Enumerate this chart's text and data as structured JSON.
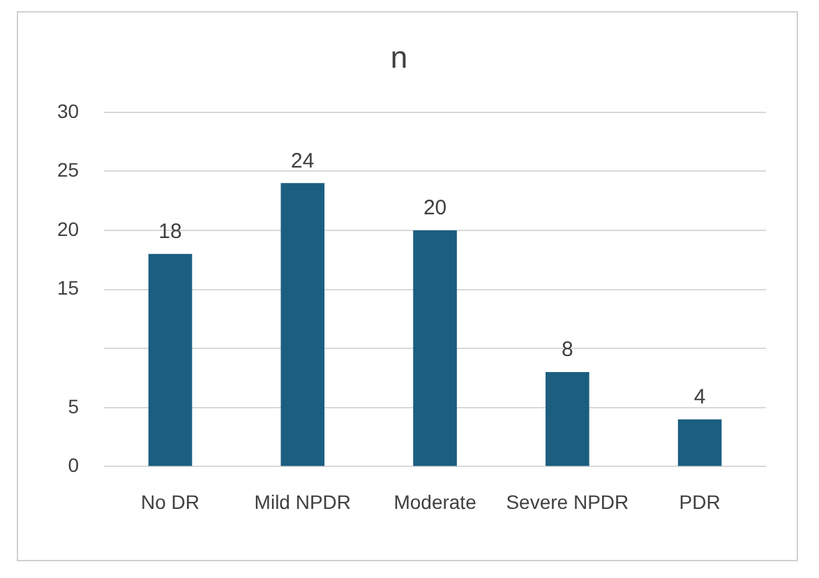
{
  "chart_data": {
    "type": "bar",
    "title": "n",
    "categories": [
      "No DR",
      "Mild NPDR",
      "Moderate",
      "Severe NPDR",
      "PDR"
    ],
    "values": [
      18,
      24,
      20,
      8,
      4
    ],
    "color": "#1b5e80",
    "ylim": [
      0,
      30
    ],
    "yticks": [
      0,
      5,
      {
        "value": 10,
        "label": null
      },
      15,
      20,
      25,
      30
    ],
    "grid": "y",
    "data_labels": true,
    "legend": false
  }
}
